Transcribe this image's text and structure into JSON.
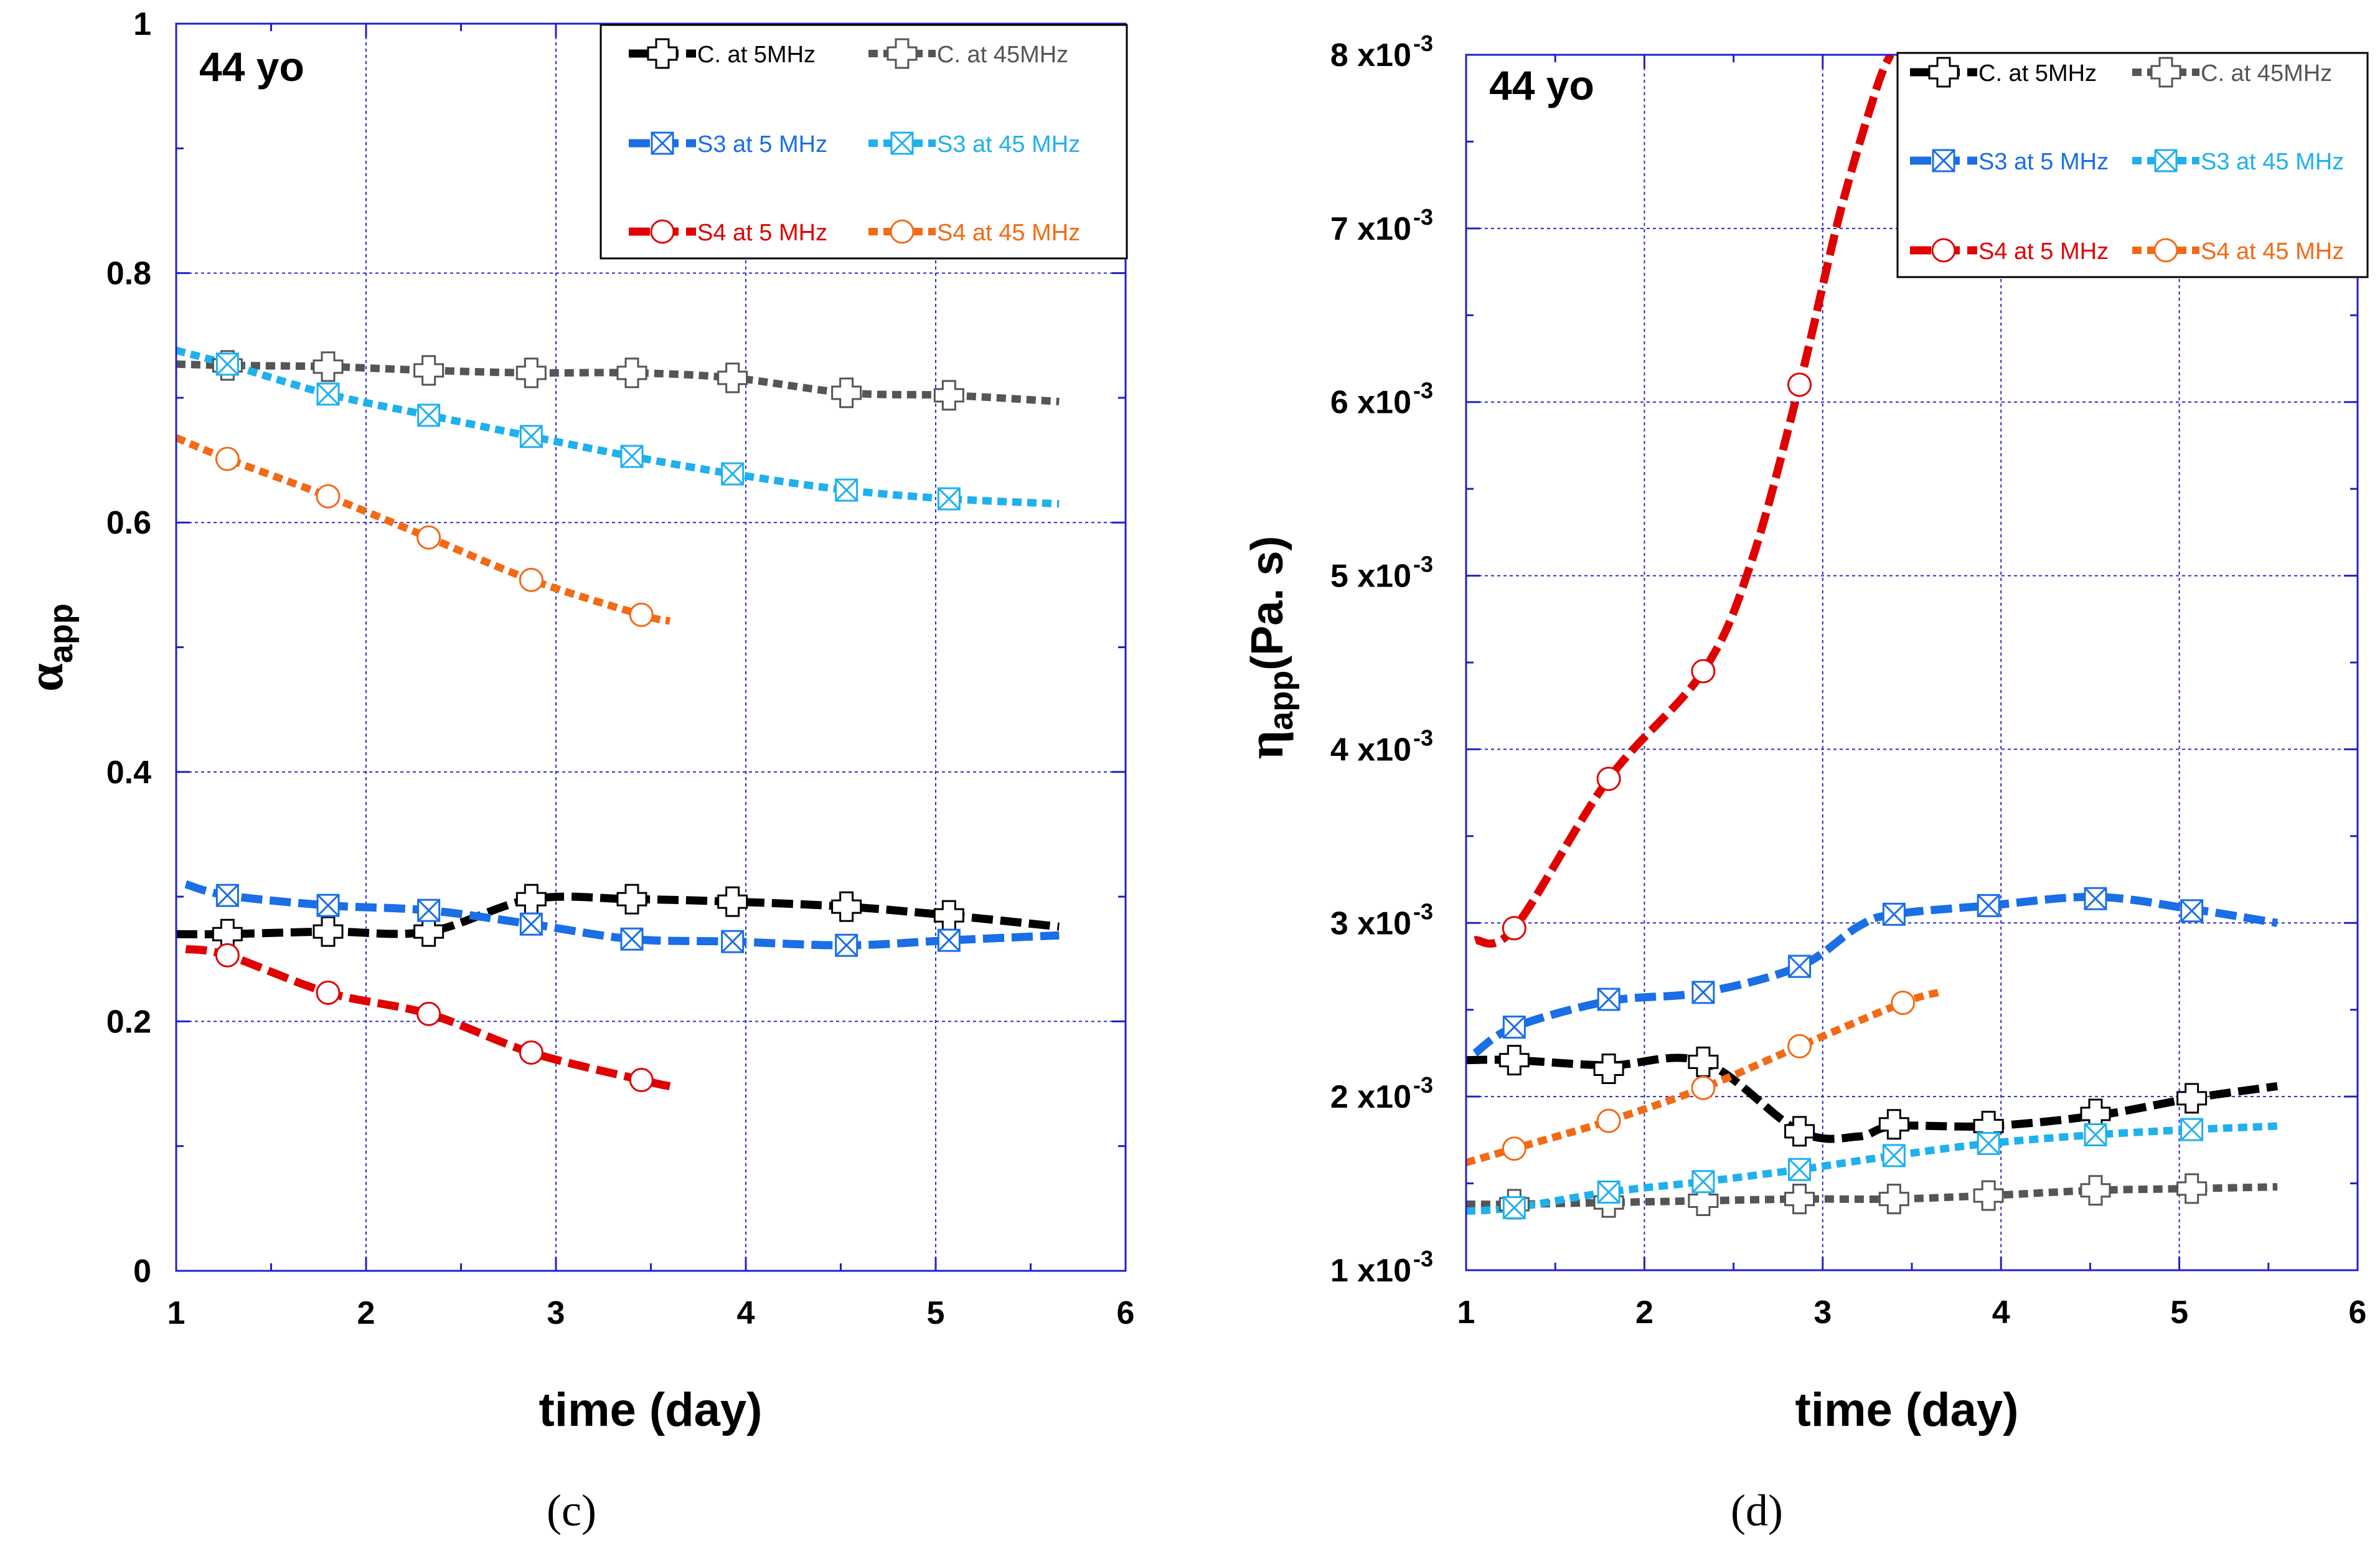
{
  "colors": {
    "c5": "#000000",
    "c45": "#555555",
    "s3_5": "#1a6ee6",
    "s3_45": "#1fb0ee",
    "s4_5": "#e00000",
    "s4_45": "#f36a14",
    "grid": "#2a2acc",
    "frame": "#2020cc"
  },
  "chart_data": [
    {
      "type": "line",
      "panel_label": "(c)",
      "annotation": "44 yo",
      "xlabel": "time (day)",
      "ylabel_main": "α",
      "ylabel_sub": "app",
      "xlim": [
        1,
        6
      ],
      "ylim": [
        0,
        1
      ],
      "xticks": [
        1,
        2,
        3,
        4,
        5,
        6
      ],
      "xtick_labels": [
        "1",
        "2",
        "3",
        "4",
        "5",
        "6"
      ],
      "yticks": [
        0,
        0.2,
        0.4,
        0.6,
        0.8,
        1
      ],
      "ytick_labels": [
        "0",
        "0.2",
        "0.4",
        "0.6",
        "0.8",
        "1"
      ],
      "grid": true,
      "legend_position": "top-right",
      "series": [
        {
          "key": "c5",
          "name": "C. at 5MHz",
          "dash": "long",
          "marker": "plus",
          "points": [
            [
              1.0,
              0.27
            ],
            [
              1.27,
              0.27
            ],
            [
              1.8,
              0.272
            ],
            [
              2.33,
              0.272
            ],
            [
              2.87,
              0.298
            ],
            [
              3.4,
              0.298
            ],
            [
              3.93,
              0.296
            ],
            [
              4.53,
              0.292
            ],
            [
              5.07,
              0.285
            ],
            [
              5.65,
              0.276
            ]
          ],
          "markers": [
            [
              1.27,
              0.27
            ],
            [
              1.8,
              0.272
            ],
            [
              2.33,
              0.272
            ],
            [
              2.87,
              0.298
            ],
            [
              3.4,
              0.298
            ],
            [
              3.93,
              0.296
            ],
            [
              4.53,
              0.292
            ],
            [
              5.07,
              0.285
            ]
          ]
        },
        {
          "key": "c45",
          "name": "C. at 45MHz",
          "dash": "short",
          "marker": "plus",
          "points": [
            [
              1.0,
              0.727
            ],
            [
              1.27,
              0.726
            ],
            [
              1.8,
              0.725
            ],
            [
              2.33,
              0.722
            ],
            [
              2.87,
              0.72
            ],
            [
              3.4,
              0.72
            ],
            [
              3.93,
              0.716
            ],
            [
              4.53,
              0.704
            ],
            [
              5.07,
              0.702
            ],
            [
              5.65,
              0.697
            ]
          ],
          "markers": [
            [
              1.27,
              0.726
            ],
            [
              1.8,
              0.725
            ],
            [
              2.33,
              0.722
            ],
            [
              2.87,
              0.72
            ],
            [
              3.4,
              0.72
            ],
            [
              3.93,
              0.716
            ],
            [
              4.53,
              0.704
            ],
            [
              5.07,
              0.702
            ]
          ]
        },
        {
          "key": "s3_5",
          "name": "S3 at 5 MHz",
          "dash": "long",
          "marker": "xbox",
          "points": [
            [
              1.05,
              0.31
            ],
            [
              1.27,
              0.301
            ],
            [
              1.8,
              0.293
            ],
            [
              2.33,
              0.289
            ],
            [
              2.87,
              0.278
            ],
            [
              3.4,
              0.266
            ],
            [
              3.93,
              0.264
            ],
            [
              4.53,
              0.261
            ],
            [
              5.07,
              0.265
            ],
            [
              5.65,
              0.269
            ]
          ],
          "markers": [
            [
              1.27,
              0.301
            ],
            [
              1.8,
              0.293
            ],
            [
              2.33,
              0.289
            ],
            [
              2.87,
              0.278
            ],
            [
              3.4,
              0.266
            ],
            [
              3.93,
              0.264
            ],
            [
              4.53,
              0.261
            ],
            [
              5.07,
              0.265
            ]
          ]
        },
        {
          "key": "s3_45",
          "name": "S3 at 45 MHz",
          "dash": "short",
          "marker": "xbox",
          "points": [
            [
              1.0,
              0.738
            ],
            [
              1.27,
              0.727
            ],
            [
              1.8,
              0.703
            ],
            [
              2.33,
              0.686
            ],
            [
              2.87,
              0.669
            ],
            [
              3.4,
              0.653
            ],
            [
              3.93,
              0.639
            ],
            [
              4.53,
              0.626
            ],
            [
              5.07,
              0.619
            ],
            [
              5.65,
              0.615
            ]
          ],
          "markers": [
            [
              1.27,
              0.727
            ],
            [
              1.8,
              0.703
            ],
            [
              2.33,
              0.686
            ],
            [
              2.87,
              0.669
            ],
            [
              3.4,
              0.653
            ],
            [
              3.93,
              0.639
            ],
            [
              4.53,
              0.626
            ],
            [
              5.07,
              0.619
            ]
          ]
        },
        {
          "key": "s4_5",
          "name": "S4 at 5 MHz",
          "dash": "long",
          "marker": "circle",
          "points": [
            [
              1.05,
              0.258
            ],
            [
              1.27,
              0.253
            ],
            [
              1.8,
              0.223
            ],
            [
              2.33,
              0.206
            ],
            [
              2.87,
              0.175
            ],
            [
              3.45,
              0.153
            ],
            [
              3.6,
              0.148
            ]
          ],
          "markers": [
            [
              1.27,
              0.253
            ],
            [
              1.8,
              0.223
            ],
            [
              2.33,
              0.206
            ],
            [
              2.87,
              0.175
            ],
            [
              3.45,
              0.153
            ]
          ]
        },
        {
          "key": "s4_45",
          "name": "S4 at 45 MHz",
          "dash": "short",
          "marker": "circle",
          "points": [
            [
              1.0,
              0.668
            ],
            [
              1.27,
              0.651
            ],
            [
              1.8,
              0.621
            ],
            [
              2.33,
              0.588
            ],
            [
              2.87,
              0.554
            ],
            [
              3.45,
              0.526
            ],
            [
              3.6,
              0.521
            ]
          ],
          "markers": [
            [
              1.27,
              0.651
            ],
            [
              1.8,
              0.621
            ],
            [
              2.33,
              0.588
            ],
            [
              2.87,
              0.554
            ],
            [
              3.45,
              0.526
            ]
          ]
        }
      ]
    },
    {
      "type": "line",
      "panel_label": "(d)",
      "annotation": "44 yo",
      "xlabel": "time (day)",
      "ylabel_main": "η",
      "ylabel_sub": "app",
      "ylabel_unit": "(Pa. s)",
      "xlim": [
        1,
        6
      ],
      "ylim": [
        0.001,
        0.008
      ],
      "xticks": [
        1,
        2,
        3,
        4,
        5,
        6
      ],
      "xtick_labels": [
        "1",
        "2",
        "3",
        "4",
        "5",
        "6"
      ],
      "yticks": [
        0.001,
        0.002,
        0.003,
        0.004,
        0.005,
        0.006,
        0.007,
        0.008
      ],
      "ytick_labels": [
        "1 x10",
        "2 x10",
        "3 x10",
        "4 x10",
        "5 x10",
        "6 x10",
        "7 x10",
        "8 x10"
      ],
      "ytick_exponent": "-3",
      "grid": true,
      "legend_position": "top-right",
      "series": [
        {
          "key": "c5",
          "name": "C. at 5MHz",
          "dash": "long",
          "marker": "plus",
          "points": [
            [
              1.0,
              0.00221
            ],
            [
              1.27,
              0.00221
            ],
            [
              1.8,
              0.00218
            ],
            [
              2.33,
              0.0022
            ],
            [
              2.87,
              0.0018
            ],
            [
              3.2,
              0.00177
            ],
            [
              3.4,
              0.00183
            ],
            [
              3.93,
              0.00183
            ],
            [
              4.53,
              0.00189
            ],
            [
              5.07,
              0.00199
            ],
            [
              5.55,
              0.00206
            ]
          ],
          "markers": [
            [
              1.27,
              0.00221
            ],
            [
              1.8,
              0.00216
            ],
            [
              2.33,
              0.0022
            ],
            [
              2.87,
              0.0018
            ],
            [
              3.4,
              0.00184
            ],
            [
              3.93,
              0.00183
            ],
            [
              4.53,
              0.0019
            ],
            [
              5.07,
              0.00199
            ]
          ]
        },
        {
          "key": "c45",
          "name": "C. at 45MHz",
          "dash": "short",
          "marker": "plus",
          "points": [
            [
              1.0,
              0.00138
            ],
            [
              1.27,
              0.00138
            ],
            [
              1.8,
              0.00139
            ],
            [
              2.33,
              0.0014
            ],
            [
              2.87,
              0.00141
            ],
            [
              3.4,
              0.00141
            ],
            [
              3.93,
              0.00143
            ],
            [
              4.53,
              0.00146
            ],
            [
              5.07,
              0.00147
            ],
            [
              5.55,
              0.00148
            ]
          ],
          "markers": [
            [
              1.27,
              0.00138
            ],
            [
              1.8,
              0.00139
            ],
            [
              2.33,
              0.0014
            ],
            [
              2.87,
              0.00141
            ],
            [
              3.4,
              0.00141
            ],
            [
              3.93,
              0.00143
            ],
            [
              4.53,
              0.00146
            ],
            [
              5.07,
              0.00147
            ]
          ]
        },
        {
          "key": "s3_5",
          "name": "S3 at 5 MHz",
          "dash": "long",
          "marker": "xbox",
          "points": [
            [
              1.05,
              0.00225
            ],
            [
              1.27,
              0.0024
            ],
            [
              1.8,
              0.00255
            ],
            [
              2.33,
              0.0026
            ],
            [
              2.87,
              0.00275
            ],
            [
              3.2,
              0.00298
            ],
            [
              3.4,
              0.00305
            ],
            [
              3.93,
              0.0031
            ],
            [
              4.53,
              0.00315
            ],
            [
              5.07,
              0.00308
            ],
            [
              5.55,
              0.003
            ]
          ],
          "markers": [
            [
              1.27,
              0.0024
            ],
            [
              1.8,
              0.00256
            ],
            [
              2.33,
              0.0026
            ],
            [
              2.87,
              0.00275
            ],
            [
              3.4,
              0.00305
            ],
            [
              3.93,
              0.0031
            ],
            [
              4.53,
              0.00314
            ],
            [
              5.07,
              0.00307
            ]
          ]
        },
        {
          "key": "s3_45",
          "name": "S3 at 45 MHz",
          "dash": "short",
          "marker": "xbox",
          "points": [
            [
              1.0,
              0.00134
            ],
            [
              1.27,
              0.00136
            ],
            [
              1.8,
              0.00145
            ],
            [
              2.33,
              0.00151
            ],
            [
              2.87,
              0.00158
            ],
            [
              3.4,
              0.00166
            ],
            [
              3.93,
              0.00173
            ],
            [
              4.53,
              0.00178
            ],
            [
              5.07,
              0.00181
            ],
            [
              5.55,
              0.00183
            ]
          ],
          "markers": [
            [
              1.27,
              0.00136
            ],
            [
              1.8,
              0.00145
            ],
            [
              2.33,
              0.00151
            ],
            [
              2.87,
              0.00158
            ],
            [
              3.4,
              0.00166
            ],
            [
              3.93,
              0.00173
            ],
            [
              4.53,
              0.00178
            ],
            [
              5.07,
              0.00181
            ]
          ]
        },
        {
          "key": "s4_5",
          "name": "S4 at 5 MHz",
          "dash": "long",
          "marker": "circle",
          "points": [
            [
              1.05,
              0.0029
            ],
            [
              1.27,
              0.00297
            ],
            [
              1.8,
              0.00383
            ],
            [
              2.33,
              0.00445
            ],
            [
              2.6,
              0.00508
            ],
            [
              2.87,
              0.0061
            ],
            [
              3.1,
              0.0071
            ],
            [
              3.3,
              0.0078
            ],
            [
              3.38,
              0.008
            ]
          ],
          "markers": [
            [
              1.27,
              0.00297
            ],
            [
              1.8,
              0.00383
            ],
            [
              2.33,
              0.00445
            ],
            [
              2.87,
              0.0061
            ]
          ]
        },
        {
          "key": "s4_45",
          "name": "S4 at 45 MHz",
          "dash": "short",
          "marker": "circle",
          "points": [
            [
              1.0,
              0.00162
            ],
            [
              1.27,
              0.0017
            ],
            [
              1.8,
              0.00186
            ],
            [
              2.33,
              0.00205
            ],
            [
              2.87,
              0.00229
            ],
            [
              3.45,
              0.00254
            ],
            [
              3.65,
              0.0026
            ]
          ],
          "markers": [
            [
              1.27,
              0.0017
            ],
            [
              1.8,
              0.00186
            ],
            [
              2.33,
              0.00205
            ],
            [
              2.87,
              0.00229
            ],
            [
              3.45,
              0.00254
            ]
          ]
        }
      ]
    }
  ]
}
